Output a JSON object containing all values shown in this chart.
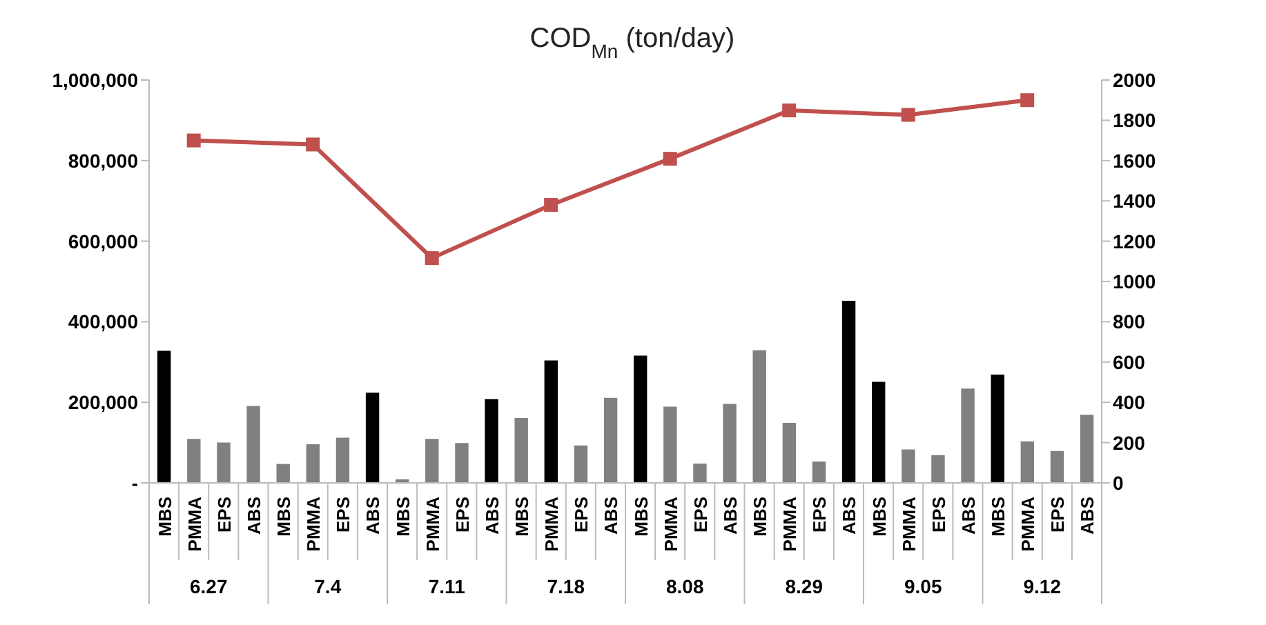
{
  "chart_data": {
    "type": "bar",
    "title": "COD$_{Mn}$ (ton/day)",
    "categories": [
      "MBS",
      "PMMA",
      "EPS",
      "ABS",
      "MBS",
      "PMMA",
      "EPS",
      "ABS",
      "MBS",
      "PMMA",
      "EPS",
      "ABS",
      "MBS",
      "PMMA",
      "EPS",
      "ABS",
      "MBS",
      "PMMA",
      "EPS",
      "ABS",
      "MBS",
      "PMMA",
      "EPS",
      "ABS",
      "MBS",
      "PMMA",
      "EPS",
      "ABS",
      "MBS",
      "PMMA",
      "EPS",
      "ABS"
    ],
    "annotations": [
      "6.27",
      "7.4",
      "7.11",
      "7.18",
      "8.08",
      "8.29",
      "9.05",
      "9.12"
    ],
    "series": [
      {
        "values": [
          328000,
          109000,
          100000,
          191000,
          47000,
          96000,
          112000,
          224000,
          9000,
          109000,
          99000,
          208000,
          161000,
          304000,
          93000,
          211000,
          316000,
          189000,
          48000,
          196000,
          329000,
          149000,
          53000,
          452000,
          251000,
          83000,
          69000,
          234000,
          269000,
          103000,
          79000,
          169000
        ],
        "colors": [
          "#000000",
          "#808080",
          "#808080",
          "#808080",
          "#808080",
          "#808080",
          "#808080",
          "#000000",
          "#808080",
          "#808080",
          "#808080",
          "#000000",
          "#808080",
          "#000000",
          "#808080",
          "#808080",
          "#000000",
          "#808080",
          "#808080",
          "#808080",
          "#808080",
          "#808080",
          "#808080",
          "#000000",
          "#000000",
          "#808080",
          "#808080",
          "#808080",
          "#000000",
          "#808080",
          "#808080",
          "#808080"
        ]
      },
      {
        "type": "line",
        "axis": "y2",
        "color": "#c0504d",
        "marker": "square",
        "values": [
          null,
          1700,
          null,
          null,
          null,
          1680,
          null,
          null,
          null,
          1116,
          null,
          null,
          null,
          1380,
          null,
          null,
          null,
          1609,
          null,
          null,
          null,
          1849,
          null,
          null,
          null,
          1827,
          null,
          null,
          null,
          1900,
          null,
          null
        ]
      }
    ],
    "ylim": [
      0,
      1000000
    ],
    "yticks": [
      {
        "value": 0,
        "label": "-"
      },
      {
        "value": 200000,
        "label": "200,000"
      },
      {
        "value": 400000,
        "label": "400,000"
      },
      {
        "value": 600000,
        "label": "600,000"
      },
      {
        "value": 800000,
        "label": "800,000"
      },
      {
        "value": 1000000,
        "label": "1,000,000"
      }
    ],
    "y2lim": [
      0,
      2000
    ],
    "y2ticks": [
      0,
      200,
      400,
      600,
      800,
      1000,
      1200,
      1400,
      1600,
      1800,
      2000
    ],
    "grid": false,
    "legend": false
  }
}
